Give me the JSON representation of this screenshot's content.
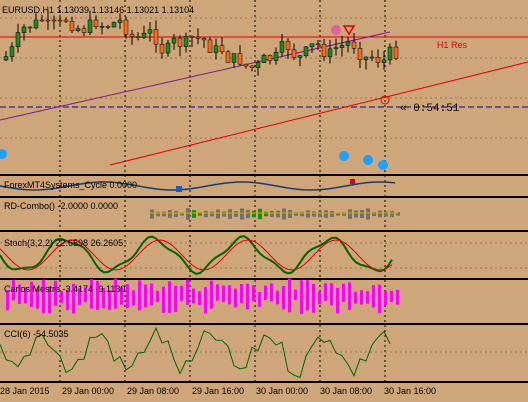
{
  "window": {
    "symbol_line": "EURUSD,H1  1.13039 1.13146 1.13021 1.13104",
    "resistance_label": "H1 Res",
    "countdown": "« 0:54:51"
  },
  "indicators": [
    {
      "label": "ForexMT4Systems_Cycle 0.0000"
    },
    {
      "label": "RD-Combo() -2.0000 0.0000"
    },
    {
      "label": "Stoch(3,2,2) 22.6598 26.2605"
    },
    {
      "label": "Carlos Mestre -3.4174 -9.1130"
    },
    {
      "label": "CCI(6) -54.5035"
    }
  ],
  "time_axis": [
    "28 Jan 2015",
    "29 Jan 00:00",
    "29 Jan 08:00",
    "29 Jan 16:00",
    "30 Jan 00:00",
    "30 Jan 08:00",
    "30 Jan 16:00"
  ],
  "colors": {
    "background": "#cfa67a",
    "bull_candle": "#1f8a1f",
    "bear_candle": "#ff6a1a",
    "trend_red": "#e00000",
    "trend_purple": "#7a1a8a",
    "dot_blue": "#1ea0ff",
    "dot_pink": "#e060a0",
    "stoch_green": "#006400",
    "stoch_red": "#e00000",
    "carlos_magenta": "#ff00ff",
    "cci_green": "#006400"
  }
}
